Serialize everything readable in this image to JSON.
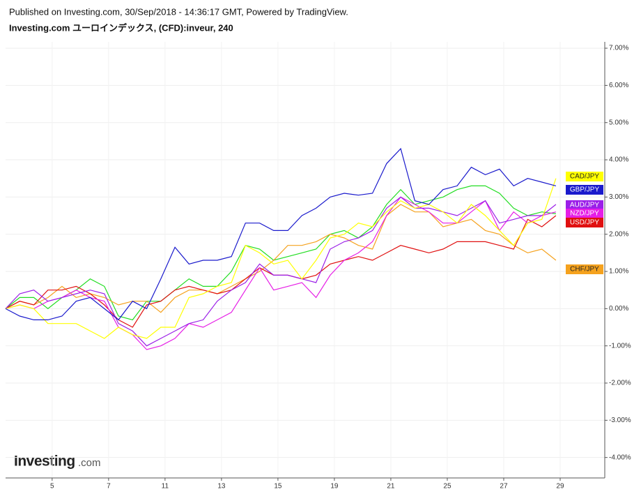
{
  "header": {
    "published": "Published on Investing.com, 30/Sep/2018 - 14:36:17 GMT, Powered by TradingView.",
    "logo_name": "Investing",
    "logo_suffix": ".com"
  },
  "chart_data": {
    "type": "line",
    "title": "Investing.com ユーロインデックス, (CFD):inveur, 240",
    "x": [
      0.35,
      0.85,
      1.35,
      1.85,
      2.35,
      2.85,
      3.35,
      3.85,
      4.35,
      4.85,
      5.35,
      5.85,
      6.35,
      6.85,
      7.35,
      7.85,
      8.35,
      8.85,
      9.35,
      9.85,
      10.35,
      10.85,
      11.35,
      11.85,
      12.35,
      12.85,
      13.35,
      13.85,
      14.35,
      14.85,
      15.35,
      15.85,
      16.35,
      16.85,
      17.35,
      17.85,
      18.35,
      18.85,
      19.35,
      19.85
    ],
    "xlim": [
      0.35,
      21.58
    ],
    "xticks": [
      {
        "value": 2,
        "label": "5"
      },
      {
        "value": 4,
        "label": "7"
      },
      {
        "value": 6,
        "label": "11"
      },
      {
        "value": 8,
        "label": "13"
      },
      {
        "value": 10,
        "label": "15"
      },
      {
        "value": 12,
        "label": "19"
      },
      {
        "value": 14,
        "label": "21"
      },
      {
        "value": 16,
        "label": "25"
      },
      {
        "value": 18,
        "label": "27"
      },
      {
        "value": 20,
        "label": "29"
      }
    ],
    "ylim": [
      -4.55,
      7.17
    ],
    "yticks": [
      {
        "value": 7,
        "label": "7.00%"
      },
      {
        "value": 6,
        "label": "6.00%"
      },
      {
        "value": 5,
        "label": "5.00%"
      },
      {
        "value": 4,
        "label": "4.00%"
      },
      {
        "value": 3,
        "label": "3.00%"
      },
      {
        "value": 2,
        "label": "2.00%"
      },
      {
        "value": 1,
        "label": "1.00%"
      },
      {
        "value": 0,
        "label": "0.00%"
      },
      {
        "value": -1,
        "label": "-1.00%"
      },
      {
        "value": -2,
        "label": "-2.00%"
      },
      {
        "value": -3,
        "label": "-3.00%"
      },
      {
        "value": -4,
        "label": "-4.00%"
      }
    ],
    "grid": true,
    "series": [
      {
        "name": "CAD/JPY",
        "color": "#ffff00",
        "values": [
          0,
          0.1,
          0,
          -0.4,
          -0.4,
          -0.4,
          -0.6,
          -0.8,
          -0.5,
          -0.7,
          -0.8,
          -0.5,
          -0.5,
          0.3,
          0.4,
          0.6,
          0.7,
          1.7,
          1.5,
          1.2,
          1.3,
          0.8,
          1.3,
          1.9,
          2.0,
          2.3,
          2.2,
          2.6,
          2.9,
          2.7,
          2.8,
          2.6,
          2.3,
          2.8,
          2.5,
          2.1,
          1.7,
          2.3,
          2.4,
          3.5
        ]
      },
      {
        "name": "GBP/JPY",
        "color": "#1a1acc",
        "values": [
          0,
          -0.2,
          -0.3,
          -0.3,
          -0.2,
          0.2,
          0.3,
          0,
          -0.3,
          0.2,
          0,
          0.8,
          1.65,
          1.2,
          1.3,
          1.3,
          1.4,
          2.3,
          2.3,
          2.1,
          2.1,
          2.5,
          2.7,
          3.0,
          3.1,
          3.05,
          3.1,
          3.9,
          4.3,
          2.9,
          2.8,
          3.2,
          3.3,
          3.8,
          3.6,
          3.75,
          3.3,
          3.5,
          3.4,
          3.3
        ]
      },
      {
        "name": "AUD/JPY",
        "color": "#9b1fe8",
        "values": [
          0,
          0.4,
          0.5,
          0.2,
          0.3,
          0.4,
          0.5,
          0.4,
          -0.4,
          -0.6,
          -1.0,
          -0.8,
          -0.6,
          -0.4,
          -0.3,
          0.2,
          0.5,
          0.7,
          1.2,
          0.9,
          0.9,
          0.8,
          0.7,
          1.6,
          1.8,
          1.9,
          2.1,
          2.7,
          3.0,
          2.7,
          2.7,
          2.6,
          2.5,
          2.7,
          2.9,
          2.3,
          2.4,
          2.5,
          2.5,
          2.8
        ]
      },
      {
        "name": "NZD/JPY",
        "color": "#e61ee6",
        "values": [
          0,
          0.1,
          0,
          0.2,
          0.3,
          0.5,
          0.3,
          0.2,
          -0.5,
          -0.7,
          -1.1,
          -1.0,
          -0.8,
          -0.4,
          -0.5,
          -0.3,
          -0.1,
          0.5,
          1.1,
          0.5,
          0.6,
          0.7,
          0.3,
          0.9,
          1.3,
          1.5,
          1.8,
          2.5,
          3.0,
          2.8,
          2.6,
          2.3,
          2.3,
          2.6,
          2.9,
          2.1,
          2.6,
          2.3,
          2.5,
          2.6
        ]
      },
      {
        "name": "USD/JPY",
        "color": "#e01010",
        "values": [
          0,
          0.2,
          0.1,
          0.5,
          0.5,
          0.6,
          0.4,
          0.1,
          -0.3,
          -0.5,
          0.1,
          0.2,
          0.5,
          0.6,
          0.5,
          0.4,
          0.5,
          0.8,
          1.1,
          0.9,
          0.9,
          0.8,
          0.9,
          1.2,
          1.3,
          1.4,
          1.3,
          1.5,
          1.7,
          1.6,
          1.5,
          1.6,
          1.8,
          1.8,
          1.8,
          1.7,
          1.6,
          2.4,
          2.2,
          2.5
        ]
      },
      {
        "name": "CHF/JPY",
        "color": "#f5a21e",
        "values": [
          0,
          0.2,
          0.1,
          0.3,
          0.6,
          0.3,
          0.4,
          0.3,
          0.1,
          0.2,
          0.2,
          -0.1,
          0.3,
          0.5,
          0.5,
          0.4,
          0.6,
          0.8,
          1.0,
          1.3,
          1.7,
          1.7,
          1.8,
          2.0,
          1.9,
          1.7,
          1.6,
          2.5,
          2.8,
          2.6,
          2.6,
          2.2,
          2.3,
          2.4,
          2.1,
          2.0,
          1.7,
          1.5,
          1.6,
          1.3
        ]
      },
      {
        "color": "#22dd22",
        "values": [
          0,
          0.3,
          0.3,
          0,
          0.3,
          0.5,
          0.8,
          0.6,
          -0.2,
          -0.3,
          0.2,
          0.2,
          0.5,
          0.8,
          0.6,
          0.6,
          1.0,
          1.7,
          1.6,
          1.3,
          1.4,
          1.5,
          1.6,
          2.0,
          2.1,
          1.9,
          2.2,
          2.8,
          3.2,
          2.8,
          2.9,
          3.0,
          3.2,
          3.3,
          3.3,
          3.1,
          2.7,
          2.5,
          2.6,
          2.55
        ]
      }
    ]
  }
}
